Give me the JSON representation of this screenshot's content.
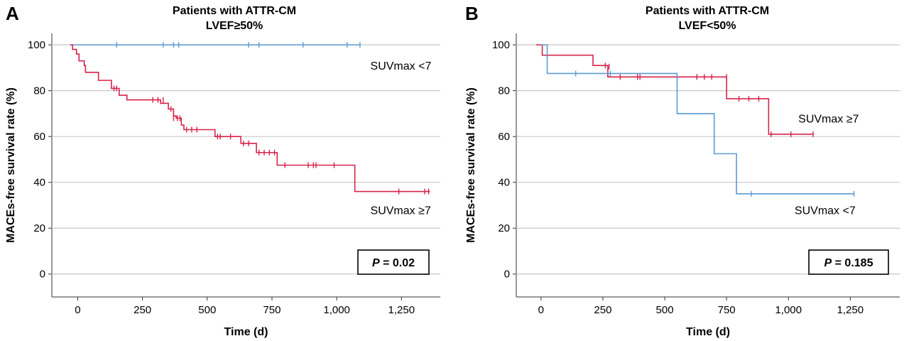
{
  "chart_data": [
    {
      "type": "line",
      "panel_letter": "A",
      "title": "Patients with ATTR-CM",
      "subtitle": "LVEF≥50%",
      "xlabel": "Time (d)",
      "ylabel": "MACEs-free survival rate (%)",
      "xlim": [
        -100,
        1400
      ],
      "ylim": [
        -10,
        105
      ],
      "x_ticks": [
        0,
        250,
        500,
        750,
        1000,
        1250
      ],
      "x_tick_labels": [
        "0",
        "250",
        "500",
        "750",
        "1,000",
        "1,250"
      ],
      "y_ticks": [
        0,
        20,
        40,
        60,
        80,
        100
      ],
      "y_tick_labels": [
        "0",
        "20",
        "40",
        "60",
        "80",
        "100"
      ],
      "grid": "horizontal",
      "p_value": {
        "italic": "P",
        "rest": " = 0.02"
      },
      "series": [
        {
          "name": "SUVmax <7",
          "color": "#5b9bd5",
          "steps": [
            [
              -30,
              100
            ],
            [
              1090,
              100
            ]
          ],
          "censored": [
            [
              150,
              100
            ],
            [
              330,
              100
            ],
            [
              370,
              100
            ],
            [
              390,
              100
            ],
            [
              660,
              100
            ],
            [
              700,
              100
            ],
            [
              870,
              100
            ],
            [
              1040,
              100
            ],
            [
              1090,
              100
            ]
          ]
        },
        {
          "name": "SUVmax ≥7",
          "color": "#d6234a",
          "steps": [
            [
              -30,
              100
            ],
            [
              -20,
              98
            ],
            [
              -5,
              96
            ],
            [
              5,
              93
            ],
            [
              25,
              91
            ],
            [
              30,
              88
            ],
            [
              80,
              84.5
            ],
            [
              130,
              81
            ],
            [
              160,
              78
            ],
            [
              190,
              76
            ],
            [
              320,
              74.5
            ],
            [
              350,
              72
            ],
            [
              370,
              69
            ],
            [
              380,
              68
            ],
            [
              400,
              65
            ],
            [
              410,
              63
            ],
            [
              530,
              60
            ],
            [
              630,
              57
            ],
            [
              690,
              53
            ],
            [
              770,
              47.5
            ],
            [
              1070,
              47.5
            ],
            [
              1070,
              36
            ],
            [
              1360,
              36
            ]
          ],
          "censored": [
            [
              140,
              81
            ],
            [
              150,
              81
            ],
            [
              290,
              76
            ],
            [
              310,
              76
            ],
            [
              330,
              76
            ],
            [
              360,
              72
            ],
            [
              370,
              68
            ],
            [
              385,
              68
            ],
            [
              395,
              68
            ],
            [
              420,
              63
            ],
            [
              440,
              63
            ],
            [
              460,
              63
            ],
            [
              540,
              60
            ],
            [
              550,
              60
            ],
            [
              590,
              60
            ],
            [
              640,
              57
            ],
            [
              660,
              57
            ],
            [
              700,
              53
            ],
            [
              720,
              53
            ],
            [
              740,
              53
            ],
            [
              760,
              53
            ],
            [
              800,
              47.5
            ],
            [
              890,
              47.5
            ],
            [
              910,
              47.5
            ],
            [
              920,
              47.5
            ],
            [
              990,
              47.5
            ],
            [
              1240,
              36
            ],
            [
              1340,
              36
            ],
            [
              1355,
              36
            ]
          ]
        }
      ],
      "series_labels": [
        {
          "text": "SUVmax <7",
          "x": 1130,
          "y": 91
        },
        {
          "text": "SUVmax ≥7",
          "x": 1130,
          "y": 28
        }
      ]
    },
    {
      "type": "line",
      "panel_letter": "B",
      "title": "Patients with ATTR-CM",
      "subtitle": "LVEF<50%",
      "xlabel": "Time (d)",
      "ylabel": "MACEs-free survival rate (%)",
      "xlim": [
        -100,
        1450
      ],
      "ylim": [
        -10,
        105
      ],
      "x_ticks": [
        0,
        250,
        500,
        750,
        1000,
        1250
      ],
      "x_tick_labels": [
        "0",
        "250",
        "500",
        "750",
        "1,000",
        "1,250"
      ],
      "y_ticks": [
        0,
        20,
        40,
        60,
        80,
        100
      ],
      "y_tick_labels": [
        "0",
        "20",
        "40",
        "60",
        "80",
        "100"
      ],
      "grid": "horizontal",
      "p_value": {
        "italic": "P",
        "rest": " = 0.185"
      },
      "series": [
        {
          "name": "SUVmax ≥7",
          "color": "#d6234a",
          "steps": [
            [
              -20,
              100
            ],
            [
              0,
              100
            ],
            [
              5,
              95.5
            ],
            [
              210,
              91
            ],
            [
              270,
              86
            ],
            [
              750,
              76.5
            ],
            [
              920,
              61
            ],
            [
              1100,
              61
            ]
          ],
          "censored": [
            [
              260,
              91
            ],
            [
              275,
              90.5
            ],
            [
              320,
              86
            ],
            [
              390,
              86
            ],
            [
              400,
              86
            ],
            [
              630,
              86
            ],
            [
              660,
              86
            ],
            [
              690,
              86
            ],
            [
              750,
              86
            ],
            [
              800,
              76.5
            ],
            [
              840,
              76.5
            ],
            [
              880,
              76.5
            ],
            [
              930,
              61
            ],
            [
              1010,
              61
            ],
            [
              1100,
              61
            ]
          ]
        },
        {
          "name": "SUVmax <7",
          "color": "#5b9bd5",
          "steps": [
            [
              0,
              100
            ],
            [
              25,
              100
            ],
            [
              25,
              87.5
            ],
            [
              550,
              87.5
            ],
            [
              550,
              70
            ],
            [
              700,
              70
            ],
            [
              700,
              52.5
            ],
            [
              790,
              52.5
            ],
            [
              790,
              35
            ],
            [
              1265,
              35
            ]
          ],
          "censored": [
            [
              140,
              87.5
            ],
            [
              280,
              87.5
            ],
            [
              850,
              35
            ],
            [
              1265,
              35
            ]
          ]
        }
      ],
      "series_labels": [
        {
          "text": "SUVmax ≥7",
          "x": 1040,
          "y": 68
        },
        {
          "text": "SUVmax <7",
          "x": 1025,
          "y": 28
        }
      ]
    }
  ]
}
